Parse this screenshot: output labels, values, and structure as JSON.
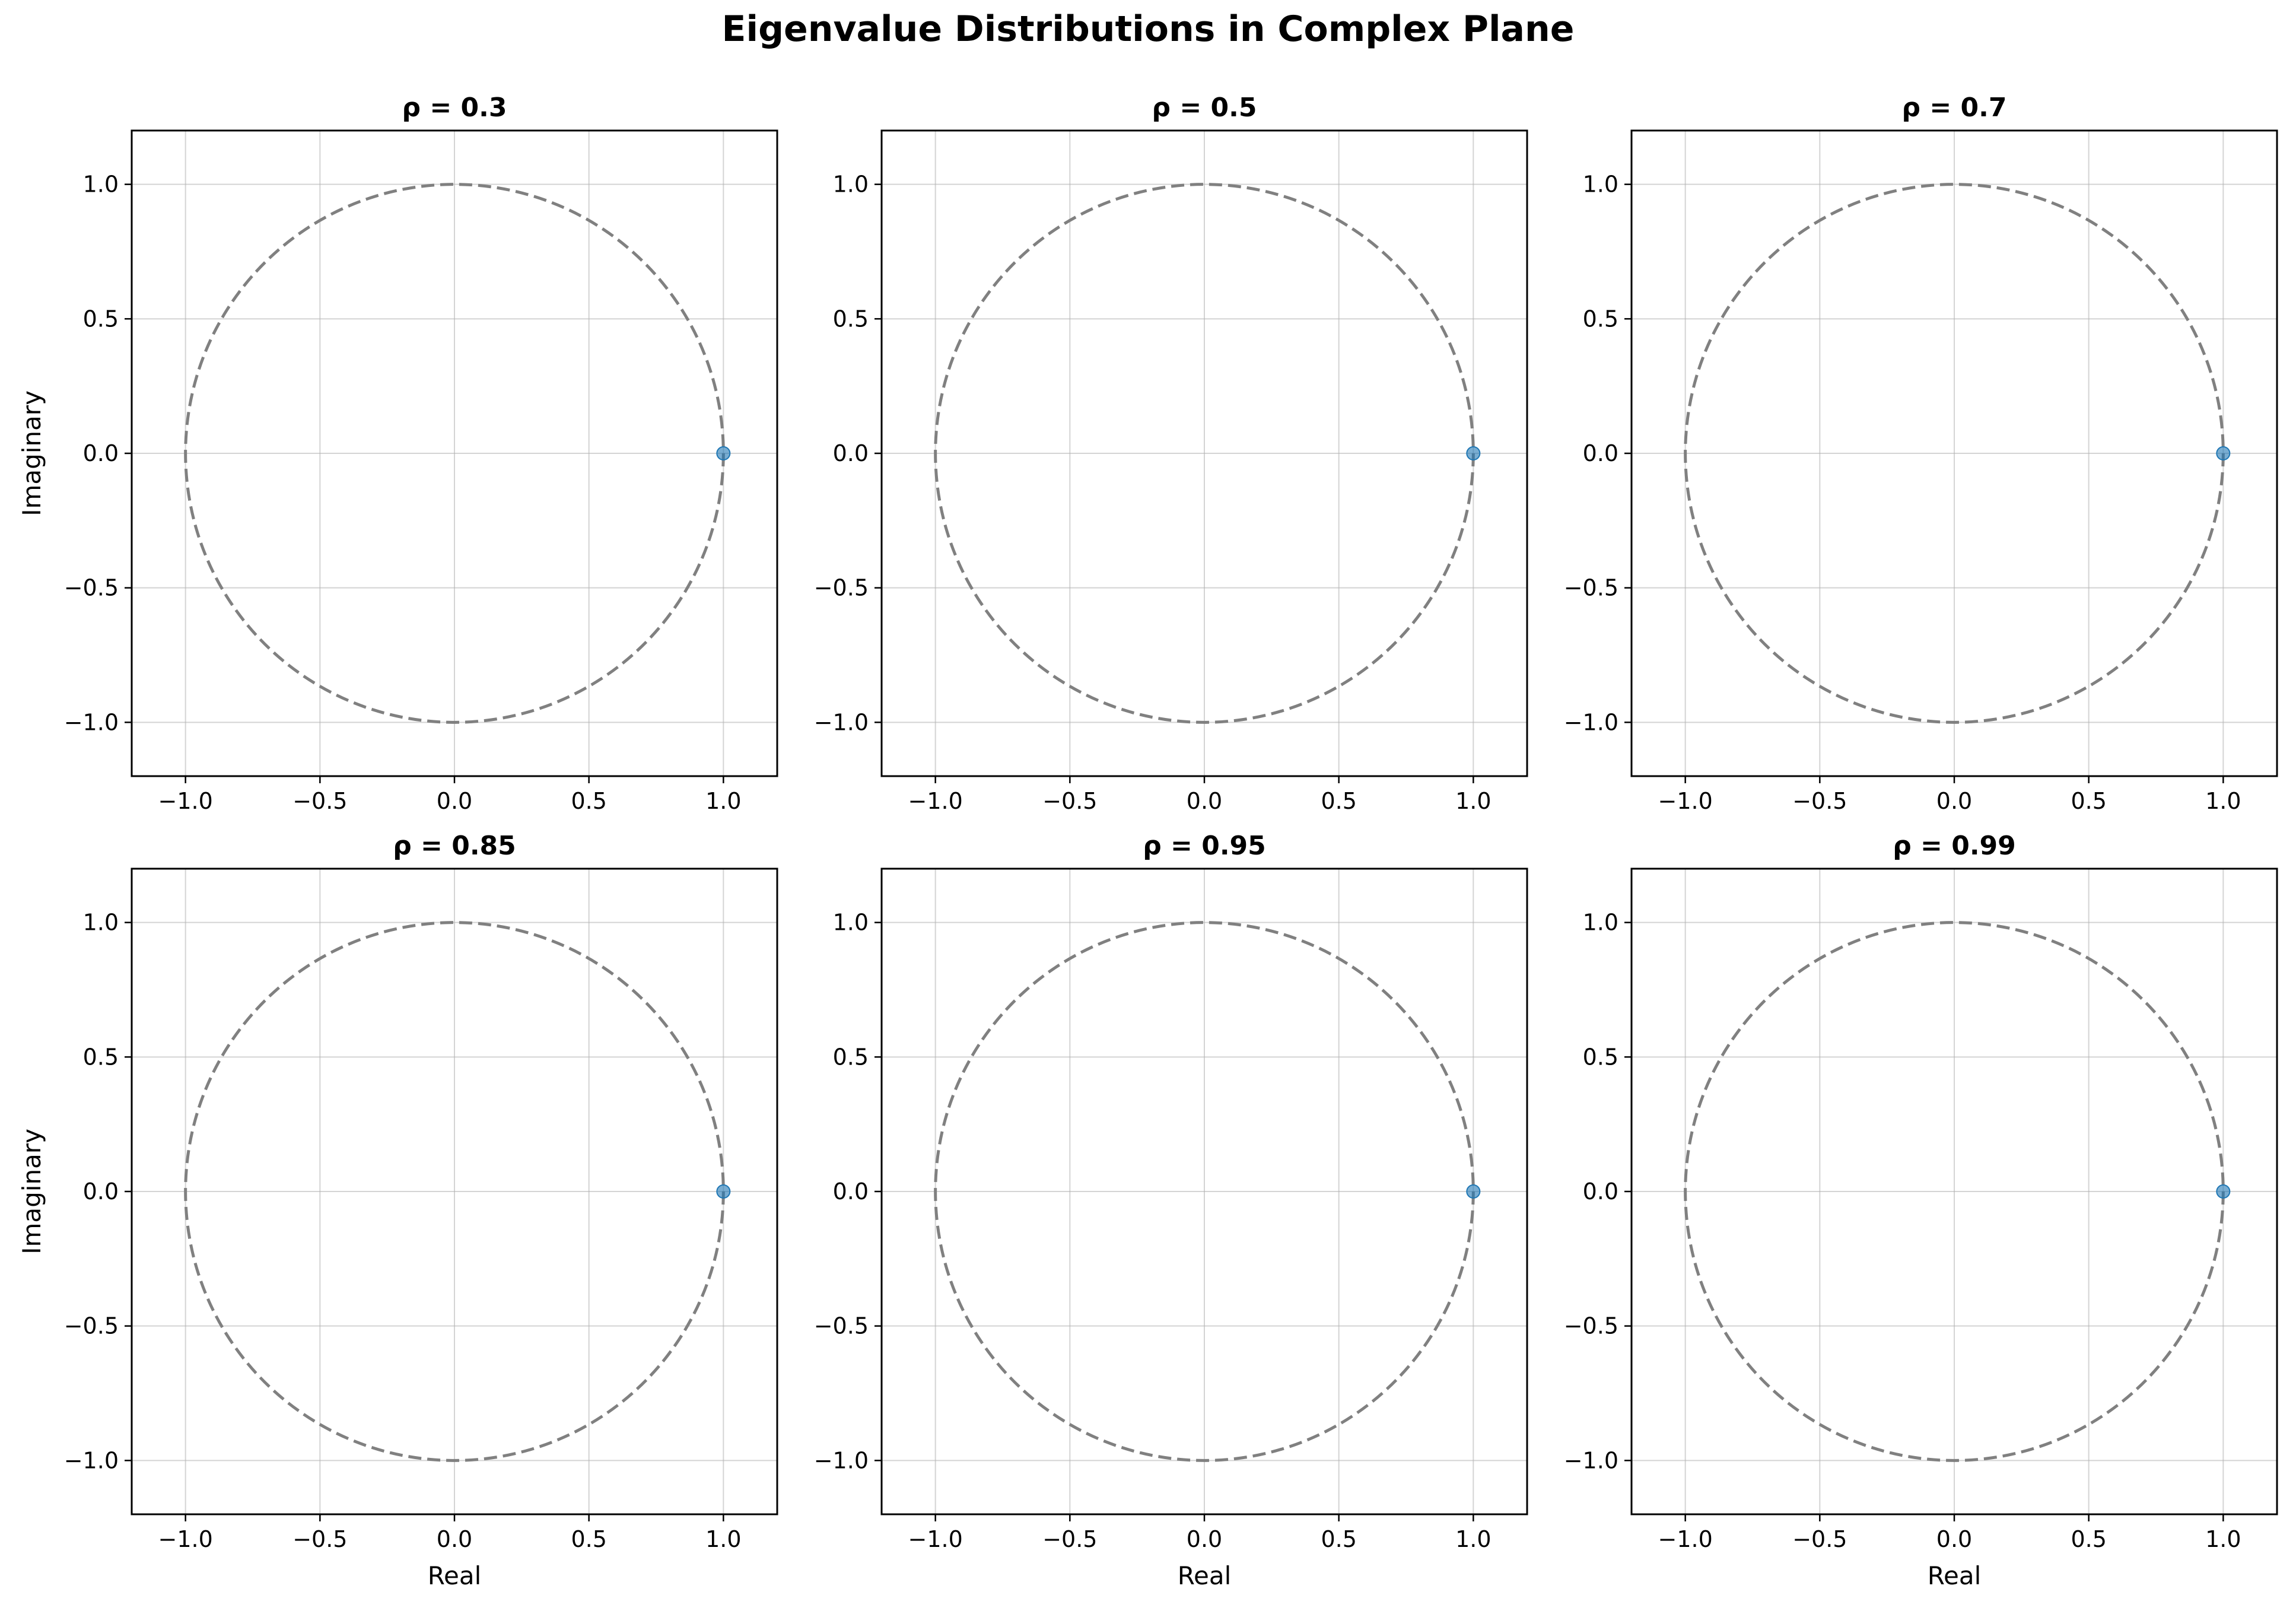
{
  "figure": {
    "title": "Eigenvalue Distributions in Complex Plane"
  },
  "colors": {
    "points": "#1f77b4",
    "unit_circle": "#808080",
    "grid": "#b0b0b0",
    "axes": "#000000"
  },
  "chart_data": [
    {
      "type": "scatter",
      "title": "ρ = 0.3",
      "xlabel": "",
      "ylabel": "Imaginary",
      "xlim": [
        -1.2,
        1.2
      ],
      "ylim": [
        -1.2,
        1.2
      ],
      "grid": true,
      "unit_circle": true,
      "xticks": [
        -1.0,
        -0.5,
        0.0,
        0.5,
        1.0
      ],
      "yticks": [
        -1.0,
        -0.5,
        0.0,
        0.5,
        1.0
      ],
      "xtick_labels": [
        "−1.0",
        "−0.5",
        "0.0",
        "0.5",
        "1.0"
      ],
      "ytick_labels": [
        "−1.0",
        "−0.5",
        "0.0",
        "0.5",
        "1.0"
      ],
      "points": [
        {
          "x": 1.0,
          "y": 0.0
        }
      ]
    },
    {
      "type": "scatter",
      "title": "ρ = 0.5",
      "xlabel": "",
      "ylabel": "",
      "xlim": [
        -1.2,
        1.2
      ],
      "ylim": [
        -1.2,
        1.2
      ],
      "grid": true,
      "unit_circle": true,
      "xticks": [
        -1.0,
        -0.5,
        0.0,
        0.5,
        1.0
      ],
      "yticks": [
        -1.0,
        -0.5,
        0.0,
        0.5,
        1.0
      ],
      "xtick_labels": [
        "−1.0",
        "−0.5",
        "0.0",
        "0.5",
        "1.0"
      ],
      "ytick_labels": [
        "−1.0",
        "−0.5",
        "0.0",
        "0.5",
        "1.0"
      ],
      "points": [
        {
          "x": 1.0,
          "y": 0.0
        }
      ]
    },
    {
      "type": "scatter",
      "title": "ρ = 0.7",
      "xlabel": "",
      "ylabel": "",
      "xlim": [
        -1.2,
        1.2
      ],
      "ylim": [
        -1.2,
        1.2
      ],
      "grid": true,
      "unit_circle": true,
      "xticks": [
        -1.0,
        -0.5,
        0.0,
        0.5,
        1.0
      ],
      "yticks": [
        -1.0,
        -0.5,
        0.0,
        0.5,
        1.0
      ],
      "xtick_labels": [
        "−1.0",
        "−0.5",
        "0.0",
        "0.5",
        "1.0"
      ],
      "ytick_labels": [
        "−1.0",
        "−0.5",
        "0.0",
        "0.5",
        "1.0"
      ],
      "points": [
        {
          "x": 1.0,
          "y": 0.0
        }
      ]
    },
    {
      "type": "scatter",
      "title": "ρ = 0.85",
      "xlabel": "Real",
      "ylabel": "Imaginary",
      "xlim": [
        -1.2,
        1.2
      ],
      "ylim": [
        -1.2,
        1.2
      ],
      "grid": true,
      "unit_circle": true,
      "xticks": [
        -1.0,
        -0.5,
        0.0,
        0.5,
        1.0
      ],
      "yticks": [
        -1.0,
        -0.5,
        0.0,
        0.5,
        1.0
      ],
      "xtick_labels": [
        "−1.0",
        "−0.5",
        "0.0",
        "0.5",
        "1.0"
      ],
      "ytick_labels": [
        "−1.0",
        "−0.5",
        "0.0",
        "0.5",
        "1.0"
      ],
      "points": [
        {
          "x": 1.0,
          "y": 0.0
        }
      ]
    },
    {
      "type": "scatter",
      "title": "ρ = 0.95",
      "xlabel": "Real",
      "ylabel": "",
      "xlim": [
        -1.2,
        1.2
      ],
      "ylim": [
        -1.2,
        1.2
      ],
      "grid": true,
      "unit_circle": true,
      "xticks": [
        -1.0,
        -0.5,
        0.0,
        0.5,
        1.0
      ],
      "yticks": [
        -1.0,
        -0.5,
        0.0,
        0.5,
        1.0
      ],
      "xtick_labels": [
        "−1.0",
        "−0.5",
        "0.0",
        "0.5",
        "1.0"
      ],
      "ytick_labels": [
        "−1.0",
        "−0.5",
        "0.0",
        "0.5",
        "1.0"
      ],
      "points": [
        {
          "x": 1.0,
          "y": 0.0
        }
      ]
    },
    {
      "type": "scatter",
      "title": "ρ = 0.99",
      "xlabel": "Real",
      "ylabel": "",
      "xlim": [
        -1.2,
        1.2
      ],
      "ylim": [
        -1.2,
        1.2
      ],
      "grid": true,
      "unit_circle": true,
      "xticks": [
        -1.0,
        -0.5,
        0.0,
        0.5,
        1.0
      ],
      "yticks": [
        -1.0,
        -0.5,
        0.0,
        0.5,
        1.0
      ],
      "xtick_labels": [
        "−1.0",
        "−0.5",
        "0.0",
        "0.5",
        "1.0"
      ],
      "ytick_labels": [
        "−1.0",
        "−0.5",
        "0.0",
        "0.5",
        "1.0"
      ],
      "points": [
        {
          "x": 1.0,
          "y": 0.0
        }
      ]
    }
  ]
}
